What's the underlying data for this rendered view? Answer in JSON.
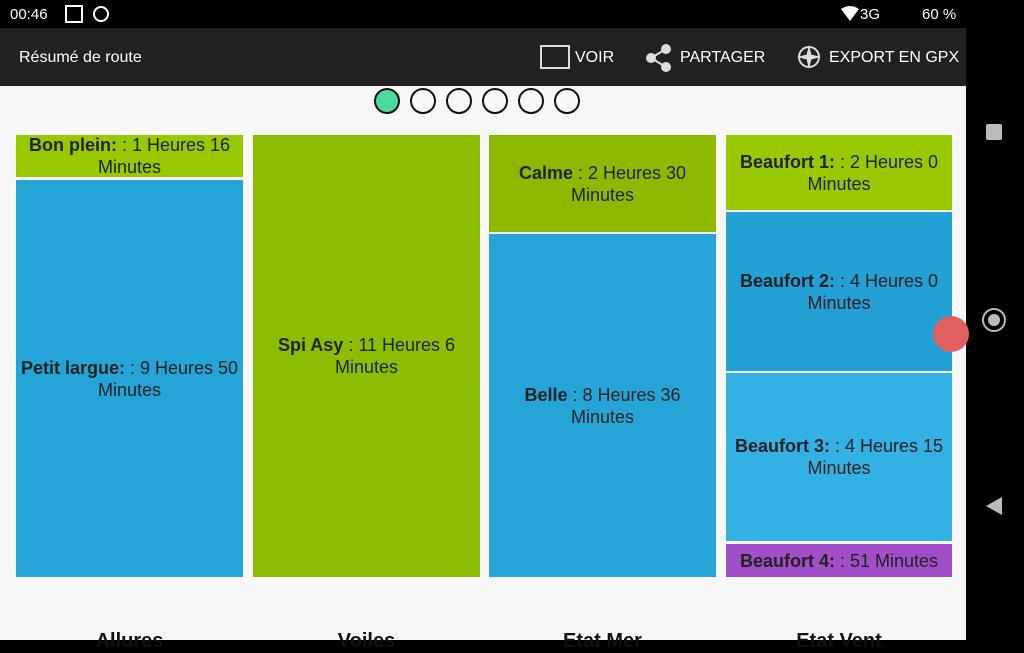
{
  "status_bar": {
    "time": "00:46",
    "network": "3G",
    "battery": "60 %"
  },
  "toolbar": {
    "title": "Résumé de route",
    "actions": [
      "VOIR",
      "PARTAGER",
      "EXPORT EN GPX"
    ]
  },
  "columns": [
    {
      "label": "Allures",
      "segments": [
        {
          "name": "Bon plein:",
          "text": " : 1 Heures 16 Minutes"
        },
        {
          "name": "Petit largue:",
          "text": " : 9 Heures 50 Minutes"
        }
      ]
    },
    {
      "label": "Voiles",
      "segments": [
        {
          "name": "Spi Asy",
          "text": " : 11 Heures 6 Minutes"
        }
      ]
    },
    {
      "label": "Etat Mer",
      "segments": [
        {
          "name": "Calme",
          "text": " : 2 Heures 30 Minutes"
        },
        {
          "name": "Belle",
          "text": " : 8 Heures 36 Minutes"
        }
      ]
    },
    {
      "label": "Etat Vent",
      "segments": [
        {
          "name": "Beaufort 1:",
          "text": " : 2 Heures 0 Minutes"
        },
        {
          "name": "Beaufort 2:",
          "text": " : 4 Heures 0 Minutes"
        },
        {
          "name": "Beaufort 3:",
          "text": " : 4 Heures 15 Minutes"
        },
        {
          "name": "Beaufort 4:",
          "text": " : 51 Minutes"
        }
      ]
    }
  ]
}
